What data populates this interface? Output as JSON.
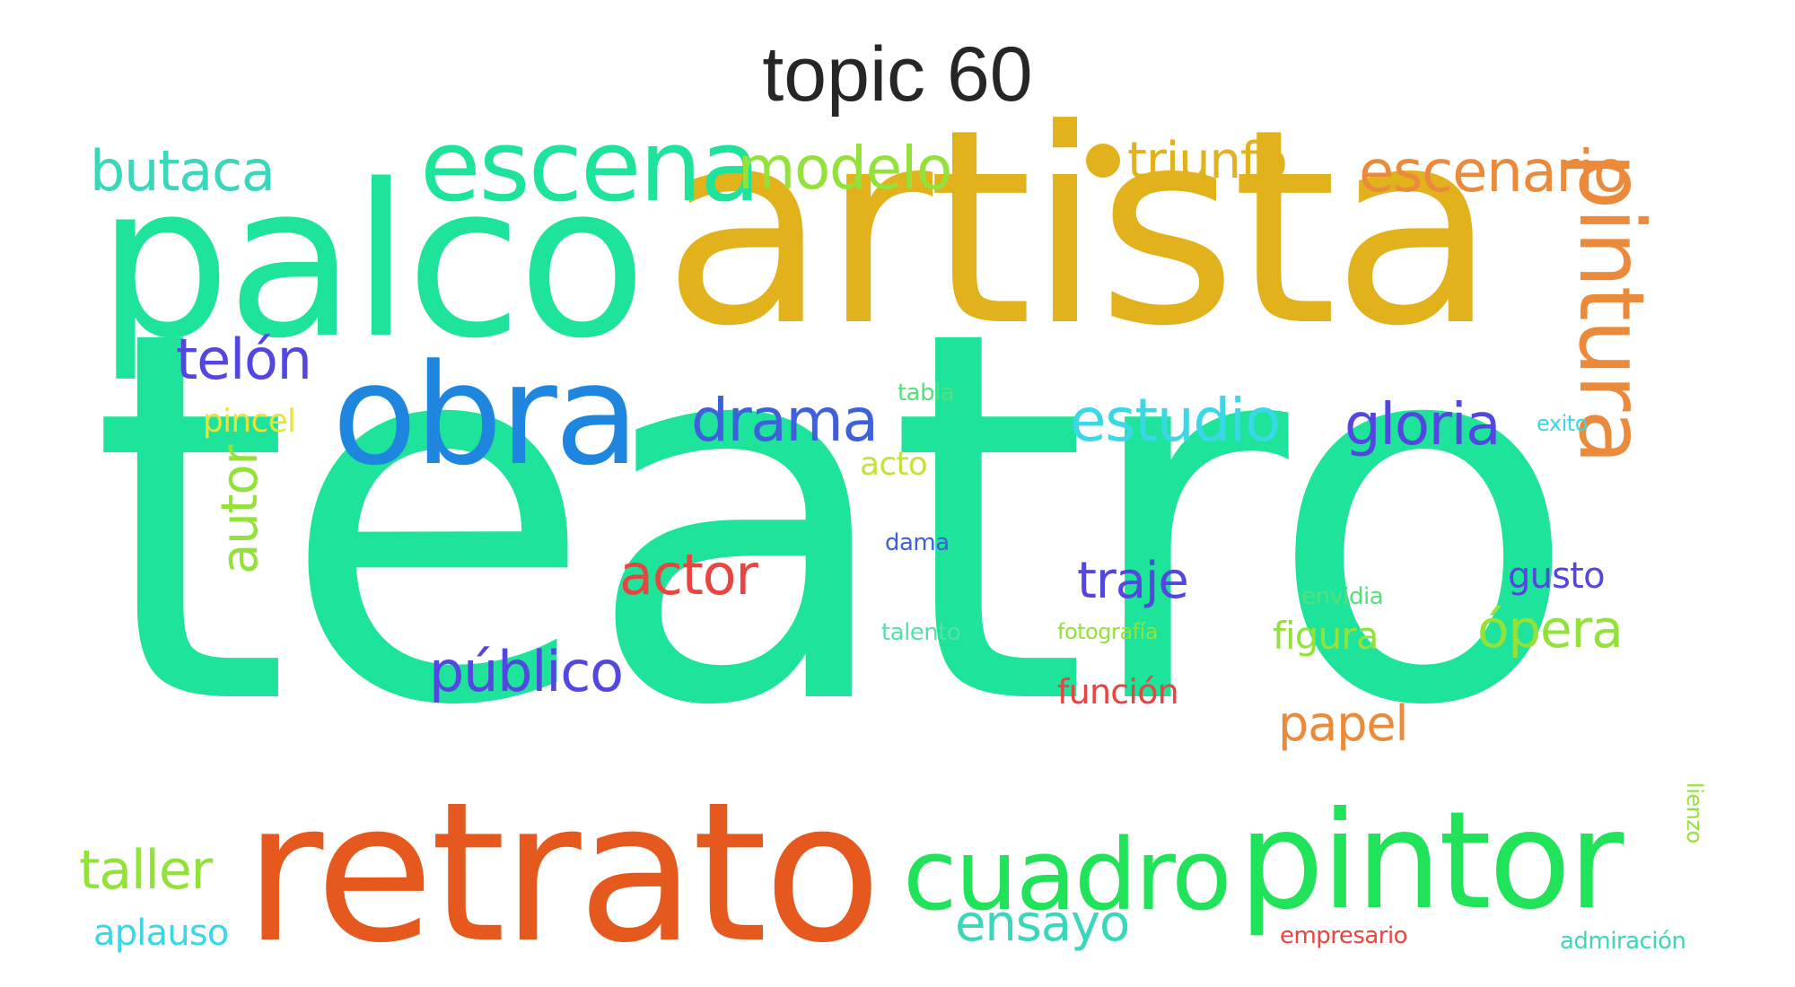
{
  "title": "topic 60",
  "colors": {
    "teal": "#1ee39a",
    "gold": "#e2b21c",
    "orange_red": "#e5581e",
    "blue": "#1f86e0",
    "green": "#21e35a",
    "orange": "#ec8a3c",
    "indigo": "#5446e0",
    "lime": "#93e23a",
    "cyan": "#3ad7e6",
    "red": "#e84440",
    "yellow": "#e9e23a",
    "light_green": "#55e07a"
  },
  "words": [
    {
      "text": "teatro",
      "color": "#1ee39a"
    },
    {
      "text": "artista",
      "color": "#e2b21c"
    },
    {
      "text": "retrato",
      "color": "#e5581e"
    },
    {
      "text": "palco",
      "color": "#1ee39a"
    },
    {
      "text": "pintor",
      "color": "#21e35a"
    },
    {
      "text": "obra",
      "color": "#1f86e0"
    },
    {
      "text": "escena",
      "color": "#1ee39a"
    },
    {
      "text": "cuadro",
      "color": "#21e35a"
    },
    {
      "text": "pintura",
      "color": "#ec8a3c"
    },
    {
      "text": "modelo",
      "color": "#93e23a"
    },
    {
      "text": "escenario",
      "color": "#ec8a3c"
    },
    {
      "text": "triunfo",
      "color": "#e2b21c"
    },
    {
      "text": "butaca",
      "color": "#3ad7ba"
    },
    {
      "text": "telón",
      "color": "#5446e0"
    },
    {
      "text": "drama",
      "color": "#3f60dc"
    },
    {
      "text": "estudio",
      "color": "#3ad7e6"
    },
    {
      "text": "gloria",
      "color": "#5446e0"
    },
    {
      "text": "actor",
      "color": "#e84440"
    },
    {
      "text": "traje",
      "color": "#5446e0"
    },
    {
      "text": "público",
      "color": "#5446e0"
    },
    {
      "text": "autor",
      "color": "#93e23a"
    },
    {
      "text": "ópera",
      "color": "#93e23a"
    },
    {
      "text": "papel",
      "color": "#ec8a3c"
    },
    {
      "text": "taller",
      "color": "#93e23a"
    },
    {
      "text": "ensayo",
      "color": "#3ad7ba"
    },
    {
      "text": "gusto",
      "color": "#5446e0"
    },
    {
      "text": "figura",
      "color": "#93e23a"
    },
    {
      "text": "función",
      "color": "#e84440"
    },
    {
      "text": "aplauso",
      "color": "#3ad7e6"
    },
    {
      "text": "pincel",
      "color": "#e9e23a"
    },
    {
      "text": "acto",
      "color": "#c3e23a"
    },
    {
      "text": "tabla",
      "color": "#55e07a"
    },
    {
      "text": "exito",
      "color": "#3ad7e6"
    },
    {
      "text": "dama",
      "color": "#3f60dc"
    },
    {
      "text": "envidia",
      "color": "#55e07a"
    },
    {
      "text": "talento",
      "color": "#55e0a8"
    },
    {
      "text": "fotografía",
      "color": "#93e23a"
    },
    {
      "text": "empresario",
      "color": "#e84440"
    },
    {
      "text": "admiración",
      "color": "#3ad7ba"
    },
    {
      "text": "lienzo",
      "color": "#93e23a"
    }
  ]
}
